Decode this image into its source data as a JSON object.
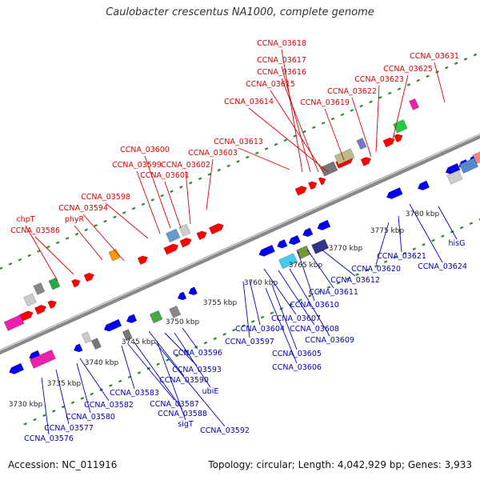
{
  "title": "Caulobacter crescentus NA1000, complete genome",
  "footer": {
    "accession": "Accession: NC_011916",
    "summary": "Topology: circular; Length: 4,042,929 bp; Genes: 3,933"
  },
  "colors": {
    "forward_label": "#dd0000",
    "reverse_label": "#0000bb",
    "forward_gene": "#ff0000",
    "reverse_gene": "#0000ee",
    "backbone": "#888888",
    "tick": "#2e8b2e"
  },
  "kbp_ticks": [
    "3730 kbp",
    "3735 kbp",
    "3740 kbp",
    "3745 kbp",
    "3750 kbp",
    "3755 kbp",
    "3760 kbp",
    "3765 kbp",
    "3770 kbp",
    "3775 kbp",
    "3780 kbp"
  ],
  "forward_labels": [
    "CCNA_03618",
    "CCNA_03617",
    "CCNA_03616",
    "CCNA_03615",
    "CCNA_03614",
    "CCNA_03619",
    "CCNA_03622",
    "CCNA_03623",
    "CCNA_03625",
    "CCNA_03631",
    "CCNA_03613",
    "CCNA_03600",
    "CCNA_03603",
    "CCNA_03599",
    "CCNA_03602",
    "CCNA_03601",
    "CCNA_03598",
    "CCNA_03594",
    "chpT",
    "phyR",
    "CCNA_03586"
  ],
  "reverse_labels": [
    "hisG",
    "CCNA_03624",
    "CCNA_03621",
    "CCNA_03620",
    "CCNA_03612",
    "CCNA_03611",
    "CCNA_03610",
    "CCNA_03607",
    "CCNA_03608",
    "CCNA_03609",
    "CCNA_03604",
    "CCNA_03597",
    "CCNA_03605",
    "CCNA_03606",
    "CCNA_03596",
    "CCNA_03593",
    "CCNA_03590",
    "ubiE",
    "CCNA_03583",
    "CCNA_03587",
    "CCNA_03588",
    "CCNA_03582",
    "sigT",
    "CCNA_03592",
    "CCNA_03580",
    "CCNA_03577",
    "CCNA_03576"
  ]
}
